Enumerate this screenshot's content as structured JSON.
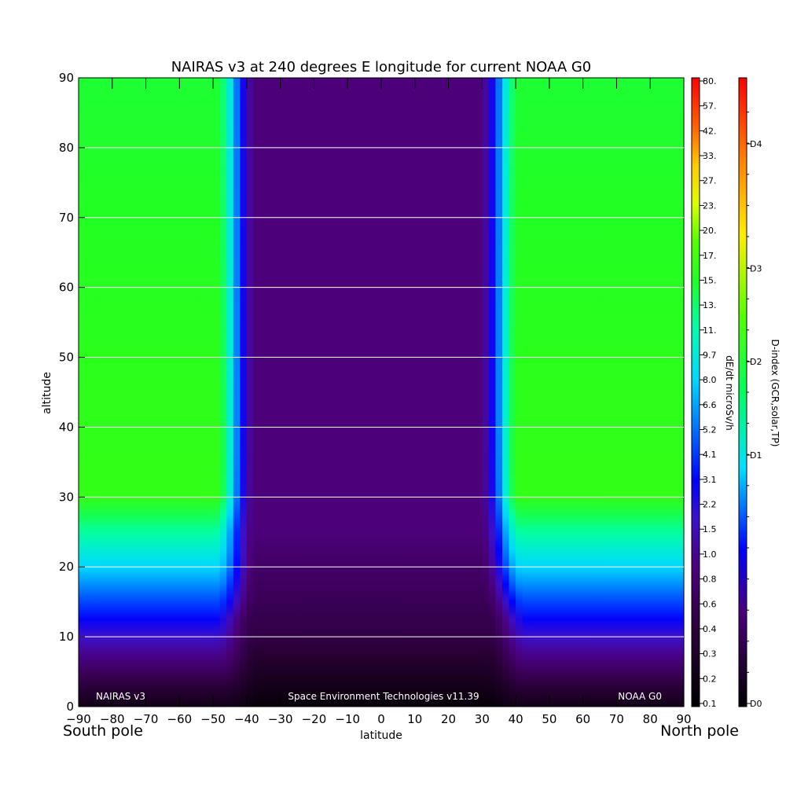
{
  "chart_data": {
    "type": "heatmap",
    "title": "NAIRAS v3 at 240 degrees E longitude for current NOAA G0",
    "xlabel": "latitude",
    "ylabel": "altitude",
    "x_ticks": [
      "-90",
      "-80",
      "-70",
      "-60",
      "-50",
      "-40",
      "-30",
      "-20",
      "-10",
      "0",
      "10",
      "20",
      "30",
      "40",
      "50",
      "60",
      "70",
      "80",
      "90"
    ],
    "y_ticks": [
      "0",
      "10",
      "20",
      "30",
      "40",
      "50",
      "60",
      "70",
      "80",
      "90"
    ],
    "xlim": [
      -90,
      90
    ],
    "ylim": [
      0,
      90
    ],
    "grid": "horizontal lines every 10",
    "pole_labels": {
      "left": "South pole",
      "right": "North pole"
    },
    "footer": {
      "left": "NAIRAS v3",
      "center": "Space Environment Technologies v11.39",
      "right": "NOAA G0"
    },
    "colorbar_dose": {
      "label": "dE/dt microSv/h",
      "ticks": [
        "0.1",
        "0.2",
        "0.3",
        "0.4",
        "0.6",
        "0.8",
        "1.0",
        "1.5",
        "2.2",
        "3.1",
        "4.1",
        "5.2",
        "6.6",
        "8.0",
        "9.7",
        "11.",
        "13.",
        "15.",
        "17.",
        "20.",
        "23.",
        "27.",
        "33.",
        "42.",
        "57.",
        "80."
      ]
    },
    "colorbar_index": {
      "label": "D-index (GCR,solar,TP)",
      "ticks": [
        "D0",
        "D1",
        "D2",
        "D3",
        "D4"
      ]
    },
    "approx_field": {
      "description_rows": "dose rate level (colorbar index 0-1) by latitude and altitude",
      "polar_plateau_above_25km": "green (~13-17 microSv/h)",
      "equatorial_above_25km": "dark purple (~0.3 microSv/h)",
      "cutoff_transition_latitudes": [
        -45,
        35
      ],
      "near_ground": "black (~0.1 microSv/h)"
    }
  }
}
